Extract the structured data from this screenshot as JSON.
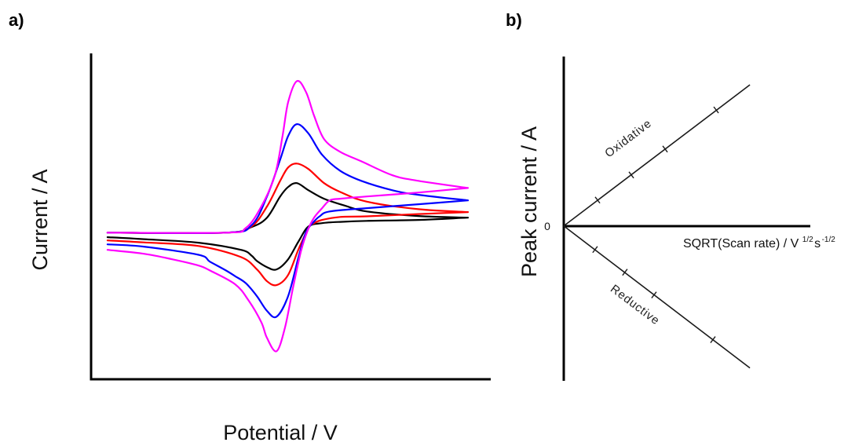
{
  "figure": {
    "panels": [
      {
        "label": "a)"
      },
      {
        "label": "b)"
      }
    ]
  },
  "chart_data": [
    {
      "panel": "a)",
      "type": "line",
      "title": "",
      "xlabel": "Potential / V",
      "ylabel": "Current / A",
      "xlim": [
        0,
        100
      ],
      "ylim": [
        -45,
        55
      ],
      "ticks": "none",
      "grid": false,
      "legend": "none",
      "series": [
        {
          "name": "black",
          "color": "#000000",
          "forward": [
            [
              4.1,
              0
            ],
            [
              33.6,
              0
            ],
            [
              40.1,
              1.7
            ],
            [
              44.0,
              4.6
            ],
            [
              47.3,
              11.1
            ],
            [
              49.3,
              14.0
            ],
            [
              51.5,
              15.2
            ],
            [
              54.4,
              13.0
            ],
            [
              58.3,
              10.4
            ],
            [
              63.7,
              8.2
            ],
            [
              69.0,
              6.5
            ],
            [
              81.9,
              5.1
            ],
            [
              94.3,
              4.6
            ]
          ],
          "reverse": [
            [
              94.3,
              4.6
            ],
            [
              81.9,
              3.9
            ],
            [
              69.0,
              3.6
            ],
            [
              62.3,
              3.3
            ],
            [
              57.8,
              2.9
            ],
            [
              54.4,
              1.9
            ],
            [
              51.9,
              -2.7
            ],
            [
              49.3,
              -8.2
            ],
            [
              46.4,
              -11.3
            ],
            [
              44.0,
              -10.6
            ],
            [
              41.5,
              -8.7
            ],
            [
              40.1,
              -7.0
            ],
            [
              37.5,
              -5.3
            ],
            [
              26.9,
              -3.1
            ],
            [
              13.2,
              -2.0
            ],
            [
              4.1,
              -1.4
            ]
          ]
        },
        {
          "name": "red",
          "color": "#ff0000",
          "forward": [
            [
              4.1,
              0
            ],
            [
              33.6,
              0
            ],
            [
              40.1,
              1.9
            ],
            [
              44.0,
              8.0
            ],
            [
              47.3,
              15.9
            ],
            [
              49.3,
              20.0
            ],
            [
              51.5,
              21.2
            ],
            [
              54.4,
              19.5
            ],
            [
              58.3,
              15.2
            ],
            [
              62.3,
              12.5
            ],
            [
              69.0,
              9.5
            ],
            [
              81.9,
              7.2
            ],
            [
              94.3,
              6.3
            ]
          ],
          "reverse": [
            [
              94.3,
              6.3
            ],
            [
              81.9,
              5.7
            ],
            [
              69.0,
              5.0
            ],
            [
              62.3,
              4.8
            ],
            [
              57.8,
              3.9
            ],
            [
              55.8,
              2.9
            ],
            [
              54.4,
              1.4
            ],
            [
              51.9,
              -5.1
            ],
            [
              49.3,
              -13.0
            ],
            [
              46.4,
              -16.1
            ],
            [
              44.0,
              -14.9
            ],
            [
              41.5,
              -11.3
            ],
            [
              37.5,
              -7.5
            ],
            [
              26.9,
              -4.1
            ],
            [
              13.2,
              -3.0
            ],
            [
              4.1,
              -2.4
            ]
          ]
        },
        {
          "name": "blue",
          "color": "#0000ff",
          "forward": [
            [
              4.1,
              0
            ],
            [
              33.6,
              0
            ],
            [
              40.1,
              2.2
            ],
            [
              44.0,
              11.1
            ],
            [
              47.3,
              22.4
            ],
            [
              49.3,
              29.6
            ],
            [
              51.5,
              33.3
            ],
            [
              54.4,
              30.4
            ],
            [
              57.8,
              23.9
            ],
            [
              62.3,
              19.0
            ],
            [
              67.6,
              15.9
            ],
            [
              75.4,
              13.0
            ],
            [
              81.9,
              11.6
            ],
            [
              94.3,
              9.9
            ]
          ],
          "reverse": [
            [
              94.3,
              9.9
            ],
            [
              81.9,
              8.7
            ],
            [
              69.0,
              7.5
            ],
            [
              59.7,
              6.5
            ],
            [
              57.2,
              5.0
            ],
            [
              55.8,
              3.4
            ],
            [
              53.8,
              0.2
            ],
            [
              51.9,
              -7.5
            ],
            [
              49.3,
              -19.5
            ],
            [
              46.4,
              -25.8
            ],
            [
              44.0,
              -24.0
            ],
            [
              41.5,
              -19.5
            ],
            [
              38.7,
              -15.5
            ],
            [
              36.1,
              -13.4
            ],
            [
              33.6,
              -11.5
            ],
            [
              29.7,
              -8.9
            ],
            [
              26.9,
              -6.8
            ],
            [
              13.2,
              -4.3
            ],
            [
              4.1,
              -3.6
            ]
          ]
        },
        {
          "name": "magenta",
          "color": "#ff00ff",
          "forward": [
            [
              4.1,
              0
            ],
            [
              33.6,
              0
            ],
            [
              38.7,
              1.4
            ],
            [
              42.6,
              8.0
            ],
            [
              46.0,
              17.6
            ],
            [
              47.9,
              29.6
            ],
            [
              49.3,
              40.0
            ],
            [
              51.5,
              46.5
            ],
            [
              53.8,
              43.1
            ],
            [
              55.8,
              35.9
            ],
            [
              58.3,
              28.7
            ],
            [
              62.3,
              24.8
            ],
            [
              67.6,
              21.9
            ],
            [
              75.4,
              17.6
            ],
            [
              81.9,
              15.9
            ],
            [
              94.3,
              13.7
            ]
          ],
          "reverse": [
            [
              94.3,
              13.7
            ],
            [
              81.9,
              12.3
            ],
            [
              69.0,
              11.1
            ],
            [
              62.3,
              10.4
            ],
            [
              59.7,
              9.9
            ],
            [
              57.8,
              7.5
            ],
            [
              55.8,
              4.6
            ],
            [
              54.2,
              0.7
            ],
            [
              52.5,
              -5.8
            ],
            [
              50.5,
              -17.1
            ],
            [
              48.5,
              -29.2
            ],
            [
              46.4,
              -36.4
            ],
            [
              44.0,
              -32.3
            ],
            [
              42.6,
              -27.5
            ],
            [
              39.5,
              -21.0
            ],
            [
              36.1,
              -15.9
            ],
            [
              29.7,
              -11.6
            ],
            [
              26.9,
              -10.1
            ],
            [
              20.4,
              -8.2
            ],
            [
              13.2,
              -6.5
            ],
            [
              4.1,
              -5.3
            ]
          ]
        }
      ]
    },
    {
      "panel": "b)",
      "type": "line",
      "title": "",
      "xlabel": "SQRT(Scan rate) / V1/2s-1/2",
      "xlabel_parts": {
        "main": "SQRT(Scan rate) / V",
        "sup1": "1/2",
        "unit2": "s",
        "sup2": "-1/2"
      },
      "ylabel": "Peak current / A",
      "yticks": [
        {
          "value": 0,
          "label": "0"
        }
      ],
      "xlim": [
        0,
        10
      ],
      "ylim": [
        -9,
        10
      ],
      "grid": false,
      "legend": "none",
      "series": [
        {
          "name": "Oxidative",
          "color": "#1a1a1a",
          "line": [
            [
              0,
              0
            ],
            [
              7.55,
              8.33
            ]
          ],
          "markers": [
            [
              1.37,
              1.53
            ],
            [
              2.74,
              3.01
            ],
            [
              4.11,
              4.54
            ],
            [
              6.18,
              6.85
            ]
          ]
        },
        {
          "name": "Reductive",
          "color": "#1a1a1a",
          "line": [
            [
              0,
              0
            ],
            [
              7.55,
              -8.38
            ]
          ],
          "markers": [
            [
              1.27,
              -1.39
            ],
            [
              2.48,
              -2.73
            ],
            [
              3.66,
              -4.07
            ],
            [
              6.05,
              -6.71
            ]
          ]
        }
      ],
      "annotations": [
        {
          "text": "Oxidative"
        },
        {
          "text": "Reductive"
        }
      ]
    }
  ]
}
